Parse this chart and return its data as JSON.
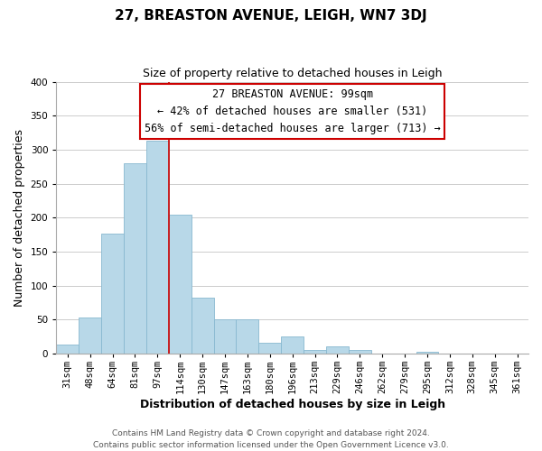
{
  "title": "27, BREASTON AVENUE, LEIGH, WN7 3DJ",
  "subtitle": "Size of property relative to detached houses in Leigh",
  "xlabel": "Distribution of detached houses by size in Leigh",
  "ylabel": "Number of detached properties",
  "categories": [
    "31sqm",
    "48sqm",
    "64sqm",
    "81sqm",
    "97sqm",
    "114sqm",
    "130sqm",
    "147sqm",
    "163sqm",
    "180sqm",
    "196sqm",
    "213sqm",
    "229sqm",
    "246sqm",
    "262sqm",
    "279sqm",
    "295sqm",
    "312sqm",
    "328sqm",
    "345sqm",
    "361sqm"
  ],
  "values": [
    13,
    53,
    176,
    280,
    313,
    204,
    82,
    51,
    50,
    16,
    25,
    5,
    10,
    5,
    0,
    0,
    2,
    0,
    0,
    0,
    0
  ],
  "bar_color": "#b8d8e8",
  "bar_edge_color": "#88b8d0",
  "vline_color": "#cc0000",
  "annotation_title": "27 BREASTON AVENUE: 99sqm",
  "annotation_line1": "← 42% of detached houses are smaller (531)",
  "annotation_line2": "56% of semi-detached houses are larger (713) →",
  "annotation_box_color": "#ffffff",
  "annotation_box_edge_color": "#cc0000",
  "ylim": [
    0,
    400
  ],
  "yticks": [
    0,
    50,
    100,
    150,
    200,
    250,
    300,
    350,
    400
  ],
  "footer_line1": "Contains HM Land Registry data © Crown copyright and database right 2024.",
  "footer_line2": "Contains public sector information licensed under the Open Government Licence v3.0.",
  "background_color": "#ffffff",
  "grid_color": "#cccccc",
  "title_fontsize": 11,
  "subtitle_fontsize": 9,
  "axis_label_fontsize": 9,
  "tick_fontsize": 7.5,
  "footer_fontsize": 6.5,
  "annotation_fontsize": 8.5
}
